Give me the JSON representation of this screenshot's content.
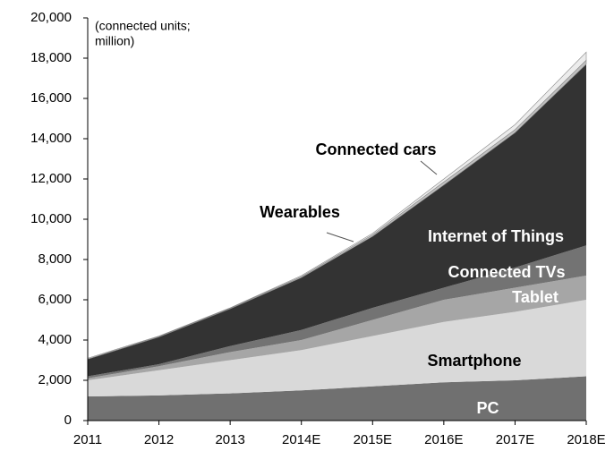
{
  "chart_data": {
    "type": "stacked_area",
    "annotation": [
      "(connected units;",
      "million)"
    ],
    "categories": [
      "2011",
      "2012",
      "2013",
      "2014E",
      "2015E",
      "2016E",
      "2017E",
      "2018E"
    ],
    "series": [
      {
        "name": "PC",
        "color": "#707070",
        "values": [
          1200,
          1250,
          1350,
          1500,
          1700,
          1900,
          2000,
          2200
        ]
      },
      {
        "name": "Smartphone",
        "color": "#d9d9d9",
        "values": [
          800,
          1250,
          1650,
          2000,
          2500,
          3000,
          3400,
          3800
        ]
      },
      {
        "name": "Tablet",
        "color": "#a6a6a6",
        "values": [
          100,
          200,
          400,
          500,
          800,
          1100,
          1200,
          1200
        ]
      },
      {
        "name": "Connected TVs",
        "color": "#737373",
        "values": [
          100,
          100,
          300,
          500,
          600,
          600,
          1000,
          1500
        ]
      },
      {
        "name": "Internet of Things",
        "color": "#333333",
        "values": [
          850,
          1350,
          1850,
          2600,
          3550,
          5100,
          6700,
          9000
        ]
      },
      {
        "name": "Wearables",
        "color": "#bfbfbf",
        "values": [
          10,
          20,
          30,
          50,
          80,
          150,
          150,
          200
        ]
      },
      {
        "name": "Connected cars",
        "color": "#ececec",
        "values": [
          40,
          30,
          20,
          50,
          70,
          150,
          250,
          400
        ]
      }
    ],
    "ylim": [
      0,
      20000
    ],
    "yticks": [
      0,
      {
        "value": 2000,
        "label": "2,000"
      },
      {
        "value": 4000,
        "label": "4,000"
      },
      {
        "value": 6000,
        "label": "6,000"
      },
      {
        "value": 8000,
        "label": "8,000"
      },
      {
        "value": 10000,
        "label": "10,000"
      },
      {
        "value": 12000,
        "label": "12,000"
      },
      {
        "value": 14000,
        "label": "14,000"
      },
      {
        "value": 16000,
        "label": "16,000"
      },
      {
        "value": 18000,
        "label": "18,000"
      },
      {
        "value": 20000,
        "label": "20,000"
      }
    ]
  }
}
